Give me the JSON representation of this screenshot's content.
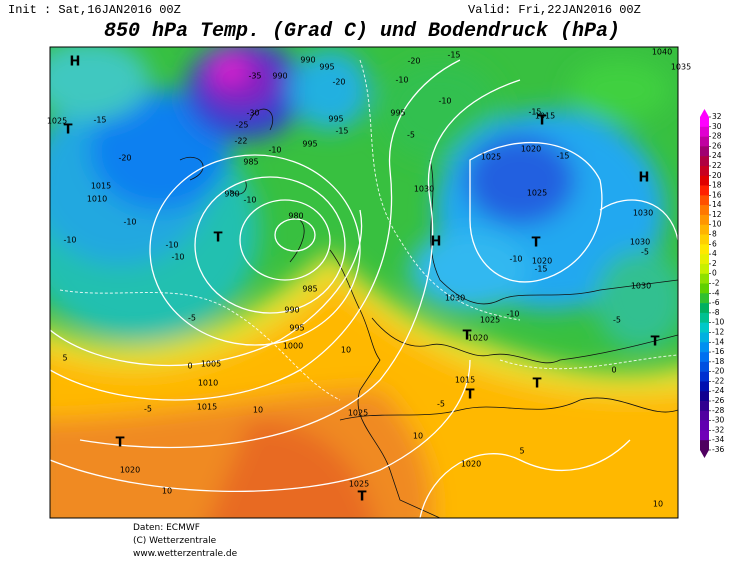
{
  "header": {
    "init": "Init : Sat,16JAN2016 00Z",
    "valid": "Valid: Fri,22JAN2016 00Z",
    "title": "850 hPa Temp. (Grad C) und Bodendruck (hPa)"
  },
  "colorbar": {
    "ticks": [
      32,
      30,
      28,
      26,
      24,
      22,
      20,
      18,
      16,
      14,
      12,
      10,
      8,
      6,
      4,
      2,
      0,
      -2,
      -4,
      -6,
      -8,
      -10,
      -12,
      -14,
      -16,
      -18,
      -20,
      -22,
      -24,
      -26,
      -28,
      -30,
      -32,
      -34,
      -36
    ],
    "colors": [
      "#ff00ff",
      "#e000d0",
      "#c000a0",
      "#a00070",
      "#b00040",
      "#c80020",
      "#e00000",
      "#ff2000",
      "#ff5000",
      "#ff7800",
      "#ff9600",
      "#ffb400",
      "#ffd000",
      "#ffe800",
      "#e8f000",
      "#c8f000",
      "#90e000",
      "#60d000",
      "#30c030",
      "#00b060",
      "#00c090",
      "#00c8c8",
      "#00b0e0",
      "#0090f0",
      "#0070f0",
      "#0050e0",
      "#0030d0",
      "#0010b0",
      "#100090",
      "#300090",
      "#5000a0",
      "#6000b0",
      "#7000b8",
      "#500060"
    ]
  },
  "map": {
    "labels": [
      "H",
      "1025",
      "T",
      "-15",
      "-20",
      "1015",
      "1010",
      "-10",
      "-10",
      "-10",
      "-10",
      "T",
      "980",
      "-10",
      "985",
      "-22",
      "-25",
      "-30",
      "-35",
      "990",
      "990",
      "995",
      "-20",
      "995",
      "-15",
      "-10",
      "995",
      "980",
      "985",
      "990",
      "995",
      "1000",
      "1005",
      "1010",
      "1015",
      "-5",
      "0",
      "-5",
      "5",
      "10",
      "1025",
      "10",
      "T",
      "1020",
      "10",
      "1025",
      "T",
      "10",
      "-15",
      "-10",
      "-20",
      "995",
      "-5",
      "-10",
      "1030",
      "H",
      "1030",
      "1025",
      "-10",
      "1020",
      "T",
      "1015",
      "T",
      "-5",
      "1020",
      "T",
      "-15",
      "1015",
      "1020",
      "-15",
      "T",
      "1025",
      "1025",
      "T",
      "-15",
      "-10",
      "1020",
      "H",
      "1030",
      "1030",
      "-5",
      "1030",
      "-5",
      "T",
      "0",
      "1040",
      "1035",
      "10",
      "5"
    ]
  },
  "footer": {
    "lines": [
      "Daten: ECMWF",
      "(C) Wetterzentrale",
      "www.wetterzentrale.de"
    ]
  }
}
